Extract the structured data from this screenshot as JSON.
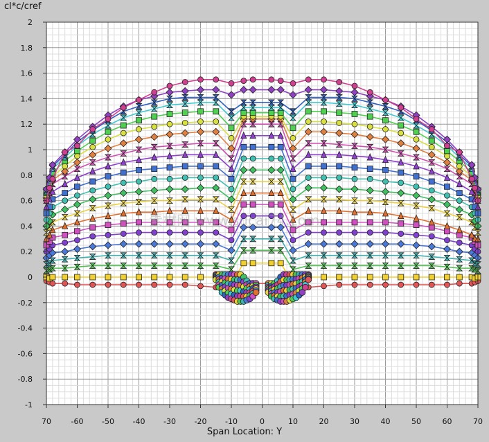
{
  "chart_data": {
    "type": "line",
    "title": "",
    "ylabel": "cl*c/cref",
    "xlabel": "Span Location: Y",
    "xlim": [
      -70,
      70
    ],
    "ylim": [
      -1,
      2
    ],
    "xticks": [
      "70",
      "-60",
      "-50",
      "-40",
      "-30",
      "-20",
      "-10",
      "0",
      "10",
      "20",
      "30",
      "40",
      "50",
      "60",
      "70"
    ],
    "yticks": [
      "2",
      "1.8",
      "1.6",
      "1.4",
      "1.2",
      "1",
      "0.8",
      "0.6",
      "0.4",
      "0.2",
      "0",
      "-0.2",
      "-0.4",
      "-0.6",
      "-0.8",
      "-1"
    ],
    "grid": true,
    "watermark": "素材网 www.sucai74.com",
    "x": [
      -70,
      -69,
      -68,
      -64,
      -60,
      -55,
      -50,
      -45,
      -40,
      -35,
      -30,
      -25,
      -20,
      -15,
      -10,
      -6,
      -3,
      3,
      6,
      10,
      15,
      20,
      25,
      30,
      35,
      40,
      45,
      50,
      55,
      60,
      64,
      68,
      69,
      70
    ],
    "series": [
      {
        "color": "#e05555",
        "marker": "circle",
        "values": [
          -0.03,
          -0.04,
          -0.05,
          -0.05,
          -0.06,
          -0.06,
          -0.06,
          -0.06,
          -0.06,
          -0.06,
          -0.06,
          -0.06,
          -0.07,
          -0.08,
          -0.12,
          -0.05,
          -0.05,
          -0.05,
          -0.05,
          -0.12,
          -0.08,
          -0.07,
          -0.06,
          -0.06,
          -0.06,
          -0.06,
          -0.06,
          -0.06,
          -0.06,
          -0.06,
          -0.05,
          -0.05,
          -0.04,
          -0.03
        ]
      },
      {
        "color": "#f0d030",
        "marker": "square",
        "values": [
          0,
          -0.01,
          0,
          0,
          0,
          0,
          0,
          0,
          0,
          0,
          0,
          0,
          0,
          0,
          -0.05,
          0.11,
          0.11,
          0.11,
          0.11,
          -0.05,
          0,
          0,
          0,
          0,
          0,
          0,
          0,
          0,
          0,
          0,
          0,
          0,
          -0.01,
          0
        ]
      },
      {
        "color": "#50c050",
        "marker": "hourglass",
        "values": [
          0.05,
          0.06,
          0.07,
          0.07,
          0.08,
          0.09,
          0.09,
          0.09,
          0.09,
          0.09,
          0.09,
          0.09,
          0.09,
          0.09,
          0.06,
          0.21,
          0.21,
          0.21,
          0.21,
          0.06,
          0.09,
          0.09,
          0.09,
          0.09,
          0.09,
          0.09,
          0.09,
          0.09,
          0.09,
          0.08,
          0.07,
          0.07,
          0.06,
          0.05
        ]
      },
      {
        "color": "#40b0b0",
        "marker": "hourglass",
        "values": [
          0.1,
          0.11,
          0.13,
          0.14,
          0.15,
          0.16,
          0.17,
          0.17,
          0.17,
          0.17,
          0.17,
          0.17,
          0.17,
          0.17,
          0.13,
          0.3,
          0.3,
          0.3,
          0.3,
          0.13,
          0.17,
          0.17,
          0.17,
          0.17,
          0.17,
          0.17,
          0.17,
          0.17,
          0.16,
          0.15,
          0.14,
          0.13,
          0.11,
          0.1
        ]
      },
      {
        "color": "#4a78d8",
        "marker": "diamond",
        "values": [
          0.15,
          0.17,
          0.19,
          0.2,
          0.22,
          0.24,
          0.25,
          0.26,
          0.26,
          0.26,
          0.26,
          0.26,
          0.26,
          0.26,
          0.21,
          0.39,
          0.39,
          0.39,
          0.39,
          0.21,
          0.26,
          0.26,
          0.26,
          0.26,
          0.26,
          0.26,
          0.26,
          0.25,
          0.24,
          0.22,
          0.2,
          0.19,
          0.17,
          0.15
        ]
      },
      {
        "color": "#8040d0",
        "marker": "circle",
        "values": [
          0.2,
          0.22,
          0.25,
          0.27,
          0.29,
          0.32,
          0.33,
          0.34,
          0.35,
          0.35,
          0.35,
          0.35,
          0.35,
          0.35,
          0.29,
          0.48,
          0.48,
          0.48,
          0.48,
          0.29,
          0.35,
          0.35,
          0.35,
          0.35,
          0.35,
          0.35,
          0.34,
          0.33,
          0.32,
          0.29,
          0.27,
          0.25,
          0.22,
          0.2
        ]
      },
      {
        "color": "#d050c0",
        "marker": "square",
        "values": [
          0.25,
          0.28,
          0.31,
          0.33,
          0.36,
          0.39,
          0.41,
          0.42,
          0.43,
          0.43,
          0.43,
          0.43,
          0.43,
          0.43,
          0.37,
          0.57,
          0.57,
          0.57,
          0.57,
          0.37,
          0.43,
          0.43,
          0.43,
          0.43,
          0.43,
          0.43,
          0.42,
          0.41,
          0.39,
          0.36,
          0.33,
          0.31,
          0.28,
          0.25
        ]
      },
      {
        "color": "#e07030",
        "marker": "triangle",
        "values": [
          0.3,
          0.33,
          0.37,
          0.4,
          0.43,
          0.46,
          0.48,
          0.5,
          0.51,
          0.51,
          0.52,
          0.52,
          0.52,
          0.52,
          0.45,
          0.66,
          0.66,
          0.66,
          0.66,
          0.45,
          0.52,
          0.52,
          0.52,
          0.51,
          0.51,
          0.5,
          0.48,
          0.46,
          0.43,
          0.4,
          0.37,
          0.33,
          0.3,
          0.3
        ]
      },
      {
        "color": "#e8d040",
        "marker": "hourglass",
        "values": [
          0.35,
          0.39,
          0.43,
          0.47,
          0.5,
          0.54,
          0.56,
          0.58,
          0.59,
          0.6,
          0.6,
          0.61,
          0.61,
          0.61,
          0.53,
          0.75,
          0.75,
          0.75,
          0.75,
          0.53,
          0.61,
          0.61,
          0.61,
          0.6,
          0.6,
          0.59,
          0.58,
          0.56,
          0.54,
          0.5,
          0.47,
          0.43,
          0.39,
          0.35
        ]
      },
      {
        "color": "#40c060",
        "marker": "diamond",
        "values": [
          0.4,
          0.44,
          0.49,
          0.53,
          0.57,
          0.61,
          0.64,
          0.66,
          0.67,
          0.68,
          0.69,
          0.69,
          0.7,
          0.7,
          0.61,
          0.84,
          0.84,
          0.84,
          0.84,
          0.61,
          0.7,
          0.7,
          0.69,
          0.69,
          0.68,
          0.67,
          0.66,
          0.64,
          0.61,
          0.57,
          0.53,
          0.49,
          0.44,
          0.4
        ]
      },
      {
        "color": "#40c0b0",
        "marker": "circle",
        "values": [
          0.45,
          0.5,
          0.55,
          0.6,
          0.64,
          0.68,
          0.71,
          0.74,
          0.75,
          0.77,
          0.77,
          0.78,
          0.78,
          0.78,
          0.69,
          0.93,
          0.93,
          0.93,
          0.93,
          0.69,
          0.78,
          0.78,
          0.78,
          0.77,
          0.77,
          0.75,
          0.74,
          0.71,
          0.68,
          0.64,
          0.6,
          0.55,
          0.5,
          0.45
        ]
      },
      {
        "color": "#4070d0",
        "marker": "square",
        "values": [
          0.5,
          0.55,
          0.61,
          0.66,
          0.71,
          0.75,
          0.79,
          0.82,
          0.84,
          0.85,
          0.86,
          0.87,
          0.87,
          0.87,
          0.77,
          1.02,
          1.02,
          1.02,
          1.02,
          0.77,
          0.87,
          0.87,
          0.87,
          0.86,
          0.85,
          0.84,
          0.82,
          0.79,
          0.75,
          0.71,
          0.66,
          0.61,
          0.55,
          0.5
        ]
      },
      {
        "color": "#9040d0",
        "marker": "triangle",
        "values": [
          0.55,
          0.61,
          0.67,
          0.73,
          0.78,
          0.83,
          0.87,
          0.9,
          0.92,
          0.94,
          0.95,
          0.96,
          0.96,
          0.96,
          0.85,
          1.11,
          1.11,
          1.11,
          1.11,
          0.85,
          0.96,
          0.96,
          0.96,
          0.95,
          0.94,
          0.92,
          0.9,
          0.87,
          0.83,
          0.78,
          0.73,
          0.67,
          0.61,
          0.55
        ]
      },
      {
        "color": "#d050b0",
        "marker": "hourglass",
        "values": [
          0.6,
          0.66,
          0.73,
          0.79,
          0.85,
          0.9,
          0.94,
          0.97,
          1.0,
          1.02,
          1.03,
          1.04,
          1.05,
          1.05,
          0.93,
          1.2,
          1.2,
          1.2,
          1.2,
          0.93,
          1.05,
          1.05,
          1.04,
          1.03,
          1.02,
          1.0,
          0.97,
          0.94,
          0.9,
          0.85,
          0.79,
          0.73,
          0.66,
          0.6
        ]
      },
      {
        "color": "#e08040",
        "marker": "diamond",
        "values": [
          0.62,
          0.69,
          0.76,
          0.83,
          0.9,
          0.96,
          1.01,
          1.05,
          1.08,
          1.1,
          1.12,
          1.13,
          1.14,
          1.14,
          1.01,
          1.24,
          1.24,
          1.24,
          1.24,
          1.01,
          1.14,
          1.14,
          1.13,
          1.12,
          1.1,
          1.08,
          1.05,
          1.01,
          0.96,
          0.9,
          0.83,
          0.76,
          0.69,
          0.62
        ]
      },
      {
        "color": "#d8e040",
        "marker": "circle",
        "values": [
          0.64,
          0.72,
          0.79,
          0.87,
          0.95,
          1.02,
          1.08,
          1.13,
          1.16,
          1.18,
          1.2,
          1.21,
          1.22,
          1.22,
          1.09,
          1.26,
          1.26,
          1.26,
          1.26,
          1.09,
          1.22,
          1.22,
          1.21,
          1.2,
          1.18,
          1.16,
          1.13,
          1.08,
          1.02,
          0.95,
          0.87,
          0.79,
          0.72,
          0.64
        ]
      },
      {
        "color": "#50d050",
        "marker": "square",
        "values": [
          0.66,
          0.74,
          0.82,
          0.91,
          0.99,
          1.07,
          1.14,
          1.19,
          1.23,
          1.26,
          1.28,
          1.29,
          1.3,
          1.3,
          1.17,
          1.29,
          1.29,
          1.29,
          1.29,
          1.17,
          1.3,
          1.3,
          1.29,
          1.28,
          1.26,
          1.23,
          1.19,
          1.14,
          1.07,
          0.99,
          0.91,
          0.82,
          0.74,
          0.66
        ]
      },
      {
        "color": "#40c8d0",
        "marker": "hourglass",
        "values": [
          0.67,
          0.76,
          0.85,
          0.94,
          1.03,
          1.12,
          1.19,
          1.25,
          1.29,
          1.32,
          1.35,
          1.36,
          1.37,
          1.37,
          1.25,
          1.33,
          1.33,
          1.33,
          1.33,
          1.25,
          1.37,
          1.37,
          1.36,
          1.35,
          1.32,
          1.29,
          1.25,
          1.19,
          1.12,
          1.03,
          0.94,
          0.85,
          0.76,
          0.67
        ]
      },
      {
        "color": "#3060c0",
        "marker": "hourglass",
        "values": [
          0.68,
          0.77,
          0.87,
          0.96,
          1.06,
          1.15,
          1.23,
          1.3,
          1.34,
          1.37,
          1.4,
          1.41,
          1.41,
          1.41,
          1.3,
          1.37,
          1.37,
          1.37,
          1.37,
          1.3,
          1.41,
          1.41,
          1.41,
          1.4,
          1.37,
          1.34,
          1.3,
          1.23,
          1.15,
          1.06,
          0.96,
          0.87,
          0.77,
          0.68
        ]
      },
      {
        "color": "#9040c0",
        "marker": "diamond",
        "values": [
          0.69,
          0.78,
          0.88,
          0.98,
          1.08,
          1.18,
          1.27,
          1.34,
          1.39,
          1.42,
          1.45,
          1.46,
          1.47,
          1.47,
          1.43,
          1.47,
          1.47,
          1.47,
          1.47,
          1.43,
          1.47,
          1.47,
          1.46,
          1.45,
          1.42,
          1.39,
          1.34,
          1.27,
          1.18,
          1.08,
          0.98,
          0.88,
          0.78,
          0.69
        ]
      },
      {
        "color": "#d04090",
        "marker": "circle",
        "values": [
          0.6,
          0.7,
          0.77,
          0.98,
          1.03,
          1.16,
          1.24,
          1.33,
          1.39,
          1.45,
          1.5,
          1.53,
          1.55,
          1.55,
          1.52,
          1.54,
          1.55,
          1.55,
          1.54,
          1.52,
          1.55,
          1.55,
          1.53,
          1.5,
          1.45,
          1.39,
          1.33,
          1.24,
          1.16,
          1.03,
          0.98,
          0.77,
          0.7,
          0.6
        ]
      }
    ],
    "root_cluster": {
      "x": [
        -15,
        -14,
        -13,
        -12,
        -11,
        -10,
        -9,
        -8,
        -7,
        -6,
        -5,
        -4,
        -3,
        -2,
        2,
        3,
        4,
        5,
        6,
        7,
        8,
        9,
        10,
        11,
        12,
        13,
        14,
        15
      ],
      "bottom": [
        -0.02,
        -0.08,
        -0.12,
        -0.14,
        -0.16,
        -0.17,
        -0.18,
        -0.19,
        -0.19,
        -0.19,
        -0.18,
        -0.17,
        -0.15,
        -0.12,
        -0.12,
        -0.15,
        -0.17,
        -0.18,
        -0.19,
        -0.19,
        -0.19,
        -0.18,
        -0.17,
        -0.16,
        -0.14,
        -0.12,
        -0.08,
        -0.02
      ],
      "top": [
        0.02,
        0.02,
        0.02,
        0.02,
        0.02,
        0.02,
        0.02,
        0.02,
        0.02,
        0.0,
        -0.03,
        -0.05,
        -0.05,
        -0.05,
        -0.05,
        -0.05,
        -0.05,
        -0.03,
        0.0,
        0.02,
        0.02,
        0.02,
        0.02,
        0.02,
        0.02,
        0.02,
        0.02,
        0.02
      ]
    }
  }
}
